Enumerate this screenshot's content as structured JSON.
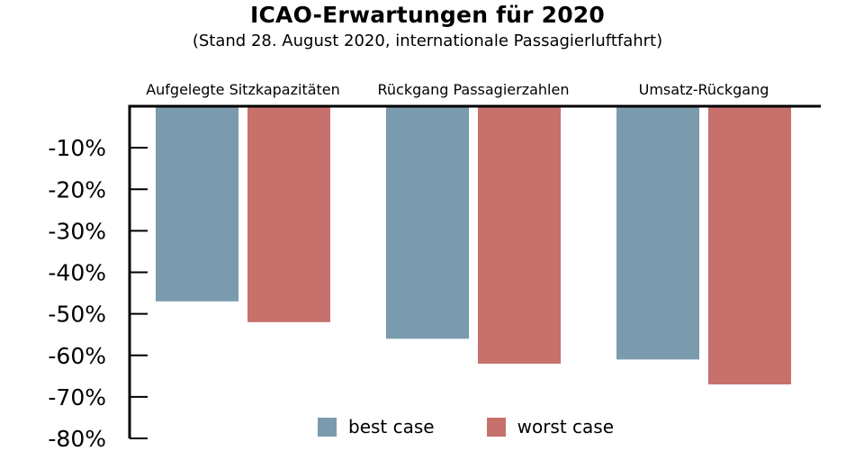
{
  "chart_data": {
    "type": "bar",
    "title": "ICAO-Erwartungen für 2020",
    "subtitle": "(Stand 28. August 2020, internationale Passagierluftfahrt)",
    "categories": [
      "Aufgelegte Sitzkapazitäten",
      "Rückgang Passagierzahlen",
      "Umsatz-Rückgang"
    ],
    "series": [
      {
        "name": "best case",
        "color": "#7a9aae",
        "values": [
          -47,
          -56,
          -61
        ]
      },
      {
        "name": "worst case",
        "color": "#c7716d",
        "values": [
          -52,
          -62,
          -67
        ]
      }
    ],
    "yticks": [
      {
        "value": -10,
        "label": "-10%"
      },
      {
        "value": -20,
        "label": "-20%"
      },
      {
        "value": -30,
        "label": "-30%"
      },
      {
        "value": -40,
        "label": "-40%"
      },
      {
        "value": -50,
        "label": "-50%"
      },
      {
        "value": -60,
        "label": "-60%"
      },
      {
        "value": -70,
        "label": "-70%"
      },
      {
        "value": -80,
        "label": "-80%"
      }
    ],
    "ylim": [
      -80,
      0
    ],
    "xlabel": "",
    "ylabel": "",
    "legend_position": "bottom",
    "category_labels_position": "top",
    "grid": false
  }
}
